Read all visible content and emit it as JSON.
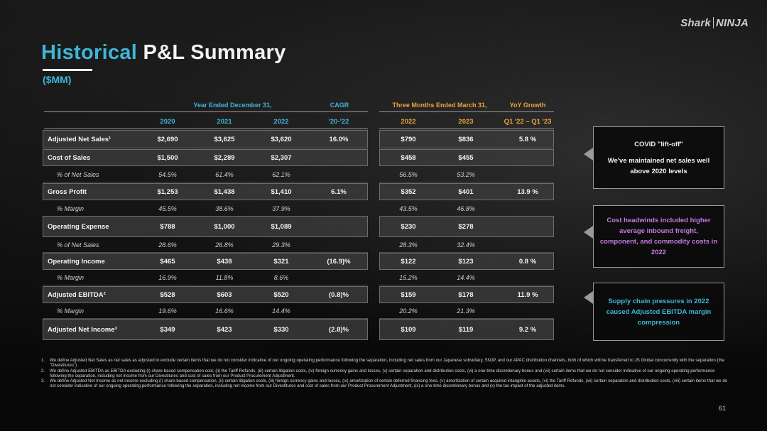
{
  "brand": {
    "left": "Shark",
    "right": "NINJA"
  },
  "title": {
    "highlight": "Historical",
    "rest": "P&L Summary",
    "units": "($MM)"
  },
  "groups": {
    "annual": "Year Ended December 31,",
    "cagr": "CAGR",
    "quarter": "Three Months Ended March 31,",
    "yoy": "YoY Growth"
  },
  "columns": [
    "2020",
    "2021",
    "2022",
    "'20-'22",
    "2022",
    "2023",
    "Q1 '22 – Q1 '23"
  ],
  "rows": [
    {
      "type": "major",
      "label": "Adjusted Net Sales¹",
      "values": [
        "$2,690",
        "$3,625",
        "$3,620",
        "16.0%",
        "$790",
        "$836",
        "5.8 %"
      ]
    },
    {
      "type": "major",
      "label": "Cost of Sales",
      "values": [
        "$1,500",
        "$2,289",
        "$2,307",
        "",
        "$458",
        "$455",
        ""
      ]
    },
    {
      "type": "minor",
      "label": "% of Net Sales",
      "values": [
        "54.5%",
        "61.4%",
        "62.1%",
        "",
        "56.5%",
        "53.2%",
        ""
      ]
    },
    {
      "type": "major",
      "label": "Gross Profit",
      "values": [
        "$1,253",
        "$1,438",
        "$1,410",
        "6.1%",
        "$352",
        "$401",
        "13.9 %"
      ]
    },
    {
      "type": "minor",
      "label": "% Margin",
      "values": [
        "45.5%",
        "38.6%",
        "37.9%",
        "",
        "43.5%",
        "46.8%",
        ""
      ]
    },
    {
      "type": "major",
      "label": "Operating Expense",
      "values": [
        "$788",
        "$1,000",
        "$1,089",
        "",
        "$230",
        "$278",
        ""
      ]
    },
    {
      "type": "minor",
      "label": "% of Net Sales",
      "values": [
        "28.6%",
        "26.8%",
        "29.3%",
        "",
        "28.3%",
        "32.4%",
        ""
      ]
    },
    {
      "type": "major",
      "label": "Operating Income",
      "values": [
        "$465",
        "$438",
        "$321",
        "(16.9)%",
        "$122",
        "$123",
        "0.8 %"
      ]
    },
    {
      "type": "minor",
      "label": "% Margin",
      "values": [
        "16.9%",
        "11.8%",
        "8.6%",
        "",
        "15.2%",
        "14.4%",
        ""
      ]
    },
    {
      "type": "major",
      "label": "Adjusted EBITDA²",
      "values": [
        "$528",
        "$603",
        "$520",
        "(0.8)%",
        "$159",
        "$178",
        "11.9 %"
      ]
    },
    {
      "type": "minor",
      "label": "% Margin",
      "values": [
        "19.6%",
        "16.6%",
        "14.4%",
        "",
        "20.2%",
        "21.3%",
        ""
      ]
    },
    {
      "type": "major",
      "label": "Adjusted Net Income³",
      "values": [
        "$349",
        "$423",
        "$330",
        "(2.8)%",
        "$109",
        "$119",
        "9.2 %"
      ]
    }
  ],
  "callouts": [
    {
      "line1": "COVID \"lift-off\"",
      "line2": "We've maintained net sales well above 2020 levels",
      "color": "#f2f2f2"
    },
    {
      "line1": "Cost headwinds included higher average inbound freight, component, and commodity costs in 2022",
      "line2": "",
      "color": "#c57be0"
    },
    {
      "line1": "Supply chain pressures in 2022 caused Adjusted EBITDA margin compression",
      "line2": "",
      "color": "#3db7d8"
    }
  ],
  "footnotes": [
    {
      "n": "1.",
      "text": "We define Adjusted Net Sales as net sales as adjusted to exclude certain items that we do not consider indicative of our ongoing operating performance following the separation, including net sales from our Japanese subsidiary, SNJP, and our APAC distribution channels, both of which will be transferred to JS Global concurrently with the separation (the \"Divestitures\")."
    },
    {
      "n": "2.",
      "text": "We define Adjusted EBITDA as EBITDA excluding (i) share-based compensation cost, (ii) the Tariff Refunds, (iii) certain litigation costs, (iv) foreign currency gains and losses, (v) certain separation and distribution costs, (vi) a one-time discretionary bonus and (vii) certain items that we do not consider indicative of our ongoing operating performance following the separation, including net income from our Divestitures and cost of sales from our Product Procurement Adjustment."
    },
    {
      "n": "3.",
      "text": "We define Adjusted Net Income as net income excluding (i) share-based compensation, (ii) certain litigation costs, (iii) foreign currency gains and losses, (iv) amortization of certain deferred financing fees, (v) amortization of certain acquired intangible assets, (vi) the Tariff Refunds, (vii) certain separation and distribution costs, (viii) certain items that we do not consider indicative of our ongoing operating performance following the separation, including net income from our Divestitures and cost of sales from our Product Procurement Adjustment, (ix) a one-time discretionary bonus and (x) the tax impact of the adjusted items."
    }
  ],
  "page_number": "61",
  "colors": {
    "accent": "#3db7d8",
    "orange": "#f0a13a",
    "purple": "#c57be0"
  }
}
